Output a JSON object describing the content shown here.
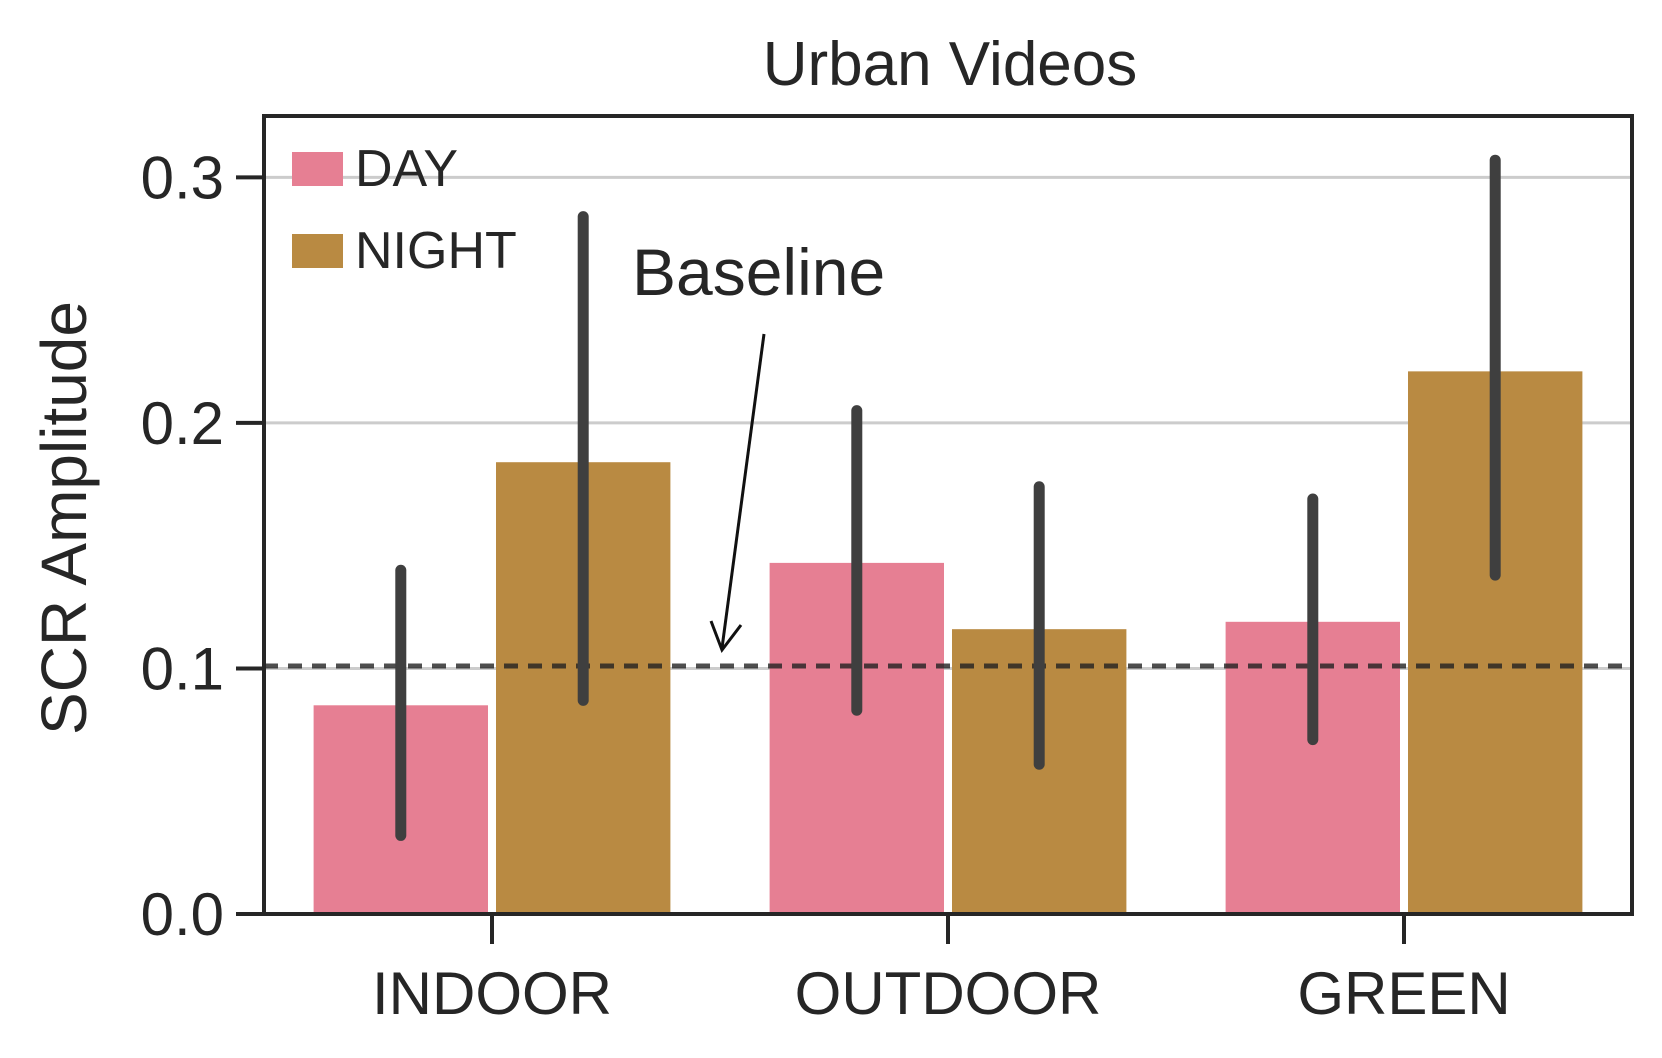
{
  "chart_data": {
    "type": "bar",
    "title": "Urban Videos",
    "xlabel": "",
    "ylabel": "SCR Amplitude",
    "ylim": [
      0,
      0.325
    ],
    "yticks": [
      0.0,
      0.1,
      0.2,
      0.3
    ],
    "ytick_labels": [
      "0.0",
      "0.1",
      "0.2",
      "0.3"
    ],
    "grid": "horizontal",
    "legend_position": "top-left",
    "categories": [
      "INDOOR",
      "OUTDOOR",
      "GREEN"
    ],
    "series": [
      {
        "name": "DAY",
        "color": "#e67f93",
        "values": [
          0.085,
          0.143,
          0.119
        ],
        "ci_low": [
          0.032,
          0.083,
          0.071
        ],
        "ci_high": [
          0.14,
          0.205,
          0.169
        ]
      },
      {
        "name": "NIGHT",
        "color": "#b98a42",
        "values": [
          0.184,
          0.116,
          0.221
        ],
        "ci_low": [
          0.087,
          0.061,
          0.138
        ],
        "ci_high": [
          0.284,
          0.174,
          0.307
        ]
      }
    ],
    "baseline": {
      "value": 0.101,
      "label": "Baseline"
    }
  }
}
